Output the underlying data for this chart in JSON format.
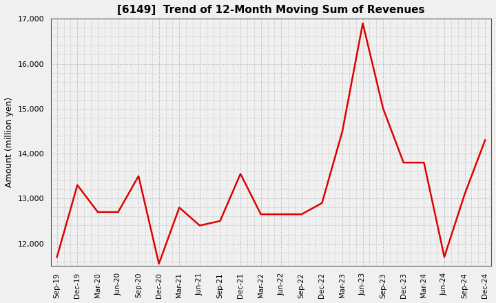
{
  "title": "[6149]  Trend of 12-Month Moving Sum of Revenues",
  "ylabel": "Amount (million yen)",
  "line_color": "#dd0000",
  "line_width": 1.8,
  "background_color": "#f0f0f0",
  "plot_bg_color": "#f0f0f0",
  "grid_color": "#999999",
  "ylim": [
    11500,
    17000
  ],
  "yticks": [
    12000,
    13000,
    14000,
    15000,
    16000,
    17000
  ],
  "labels": [
    "Sep-19",
    "Dec-19",
    "Mar-20",
    "Jun-20",
    "Sep-20",
    "Dec-20",
    "Mar-21",
    "Jun-21",
    "Sep-21",
    "Dec-21",
    "Mar-22",
    "Jun-22",
    "Sep-22",
    "Dec-22",
    "Mar-23",
    "Jun-23",
    "Sep-23",
    "Dec-23",
    "Mar-24",
    "Jun-24",
    "Sep-24",
    "Dec-24"
  ],
  "values": [
    11700,
    13300,
    12700,
    12700,
    13500,
    11550,
    12800,
    12400,
    12500,
    13550,
    12650,
    12650,
    12650,
    12900,
    14500,
    16900,
    15000,
    13800,
    13800,
    11700,
    13100,
    14300
  ]
}
